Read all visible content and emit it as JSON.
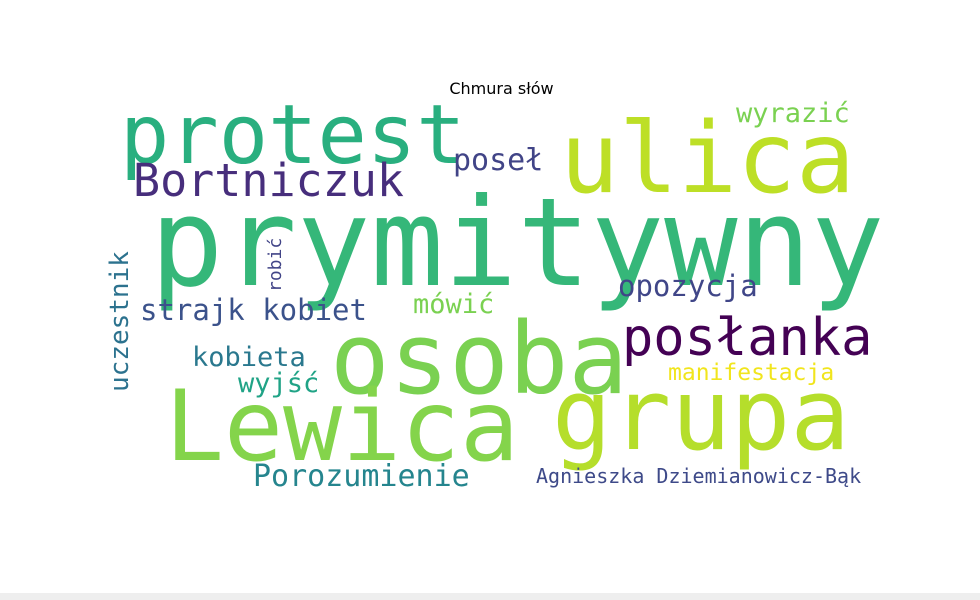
{
  "title": "Chmura słów",
  "words": [
    {
      "text": "prymitywny",
      "color": "#35b779"
    },
    {
      "text": "ulica",
      "color": "#bddf26"
    },
    {
      "text": "protest",
      "color": "#29af7f"
    },
    {
      "text": "Bortniczuk",
      "color": "#472e7c"
    },
    {
      "text": "poseł",
      "color": "#414487"
    },
    {
      "text": "wyrazić",
      "color": "#7ad151"
    },
    {
      "text": "osoba",
      "color": "#7ad151"
    },
    {
      "text": "posłanka",
      "color": "#440154"
    },
    {
      "text": "Lewica",
      "color": "#84d44b"
    },
    {
      "text": "grupa",
      "color": "#b5de2b"
    },
    {
      "text": "strajk kobiet",
      "color": "#3b528b"
    },
    {
      "text": "mówić",
      "color": "#7ad151"
    },
    {
      "text": "opozycja",
      "color": "#404688"
    },
    {
      "text": "kobieta",
      "color": "#2a788e"
    },
    {
      "text": "wyjść",
      "color": "#20a386"
    },
    {
      "text": "manifestacja",
      "color": "#f1e51d"
    },
    {
      "text": "Porozumienie",
      "color": "#25858e"
    },
    {
      "text": "Agnieszka Dziemianowicz-Bąk",
      "color": "#3e4a89"
    },
    {
      "text": "uczestnik",
      "color": "#2c728e"
    },
    {
      "text": "robić",
      "color": "#414487"
    }
  ]
}
